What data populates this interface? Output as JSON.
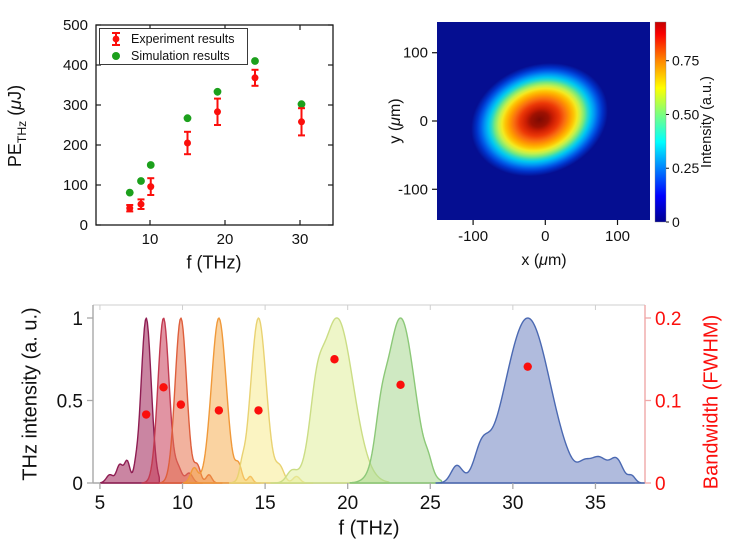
{
  "figure": {
    "background": "#ffffff"
  },
  "labels": {
    "tl_ylabel": {
      "pre": "PE",
      "sub": "THz",
      "mid": " (",
      "mu": "μ",
      "post": "J)"
    },
    "tl_xlabel": "f (THz)",
    "tr_ylabel": {
      "pre": "y (",
      "mu": "μ",
      "post": "m)"
    },
    "tr_xlabel": {
      "pre": "x (",
      "mu": "μ",
      "post": "m)"
    },
    "cb_label": "Intensity (a.u.)",
    "b_ylabel_left": "THz intensity (a. u.)",
    "b_xlabel": "f (THz)",
    "b_ylabel_right": "Bandwidth (FWHM)"
  },
  "chart_data": [
    {
      "id": "pump_energy",
      "type": "scatter",
      "xlabel": "f (THz)",
      "ylabel": "PE_THz (μJ)",
      "xlim": [
        2.8,
        34.4
      ],
      "ylim": [
        0,
        500
      ],
      "xticks": [
        10,
        20,
        30
      ],
      "xtick_labels": [
        "10",
        "20",
        "30"
      ],
      "yticks": [
        0,
        100,
        200,
        300,
        400,
        500
      ],
      "ytick_labels": [
        "0",
        "100",
        "200",
        "300",
        "400",
        "500"
      ],
      "legend": [
        "Experiment results",
        "Simulation results"
      ],
      "series": [
        {
          "name": "Simulation results",
          "color": "#1ca01c",
          "marker": "circle",
          "x": [
            7.3,
            8.8,
            10.1,
            15.0,
            19.0,
            24.0,
            30.2
          ],
          "y": [
            81,
            110,
            150,
            267,
            333,
            410,
            302
          ]
        },
        {
          "name": "Experiment results",
          "color": "#fb0f0c",
          "marker": "errorbar-circle",
          "x": [
            7.3,
            8.8,
            10.1,
            15.0,
            19.0,
            24.0,
            30.2
          ],
          "y": [
            42,
            52,
            96,
            205,
            283,
            368,
            258
          ],
          "yerr": [
            8,
            12,
            21,
            28,
            33,
            20,
            34
          ]
        }
      ]
    },
    {
      "id": "beam_profile",
      "type": "heatmap",
      "xlabel": "x (μm)",
      "ylabel": "y (μm)",
      "xlim": [
        -150,
        145
      ],
      "ylim": [
        -145,
        145
      ],
      "xticks": [
        -100,
        0,
        100
      ],
      "xtick_labels": [
        "-100",
        "0",
        "100"
      ],
      "yticks": [
        100,
        0,
        -100
      ],
      "ytick_labels": [
        "100",
        "0",
        "-100"
      ],
      "background_color": "#050e91",
      "beam": {
        "cx_um": -8,
        "cy_um": 2,
        "rx_um": 97,
        "ry_um": 80,
        "rotation_deg": -20,
        "peak_value": 0.93
      },
      "beam_gradient": [
        [
          0,
          "#7d0a03"
        ],
        [
          0.13,
          "#9e1102"
        ],
        [
          0.2,
          "#cb1d03"
        ],
        [
          0.29,
          "#ec3807"
        ],
        [
          0.37,
          "#f96c10"
        ],
        [
          0.44,
          "#ff9b00"
        ],
        [
          0.5,
          "#fdc404"
        ],
        [
          0.55,
          "#f3ea22"
        ],
        [
          0.6,
          "#c2f04e"
        ],
        [
          0.655,
          "#76e87e"
        ],
        [
          0.7,
          "#2fd9c3"
        ],
        [
          0.745,
          "#00c8f0"
        ],
        [
          0.8,
          "#0096f5"
        ],
        [
          0.86,
          "#005ce8"
        ],
        [
          0.92,
          "#0031c8"
        ],
        [
          1,
          "#050e91"
        ]
      ],
      "colorbar": {
        "label": "Intensity (a.u.)",
        "ticks": [
          0,
          0.25,
          0.5,
          0.75
        ],
        "tick_labels": [
          "0",
          "0.25",
          "0.50",
          "0.75"
        ],
        "max": 0.93,
        "gradient_bottom_to_top": [
          [
            0,
            "#00008f"
          ],
          [
            0.13,
            "#0000fe"
          ],
          [
            0.4,
            "#00fefe"
          ],
          [
            0.54,
            "#7dff7d"
          ],
          [
            0.67,
            "#ffff00"
          ],
          [
            0.81,
            "#ff8400"
          ],
          [
            0.94,
            "#fb0000"
          ],
          [
            1,
            "#c40000"
          ]
        ]
      }
    },
    {
      "id": "thz_spectra",
      "type": "area+scatter",
      "xlabel": "f (THz)",
      "ylabel_left": "THz intensity (a. u.)",
      "ylabel_right": "Bandwidth (FWHM)",
      "right_axis_color": "#fb0f0c",
      "xlim": [
        4.58,
        38.0
      ],
      "ylim_left": [
        0,
        1.078
      ],
      "ylim_right": [
        0,
        0.2156
      ],
      "xticks": [
        5,
        10,
        15,
        20,
        25,
        30,
        35
      ],
      "xtick_labels": [
        "5",
        "10",
        "15",
        "20",
        "25",
        "30",
        "35"
      ],
      "yticks_left": [
        0,
        0.5,
        1
      ],
      "ytick_labels_left": [
        "0",
        "0.5",
        "1"
      ],
      "yticks_right": [
        0,
        0.1,
        0.2
      ],
      "ytick_labels_right": [
        "0",
        "0.1",
        "0.2"
      ],
      "peaks": [
        {
          "center": 7.8,
          "fwhm": 0.72,
          "height": 1,
          "range": [
            5.05,
            8.6
          ],
          "bumps": [
            [
              5.6,
              0.5,
              0.05
            ],
            [
              6.2,
              0.45,
              0.11
            ],
            [
              6.65,
              0.4,
              0.13
            ],
            [
              7.15,
              0.3,
              0.05
            ]
          ],
          "fill": "rgba(158,32,86,0.55)",
          "edge": "#8e1d52"
        },
        {
          "center": 8.85,
          "fwhm": 0.8,
          "height": 1,
          "range": [
            7.55,
            11.2
          ],
          "bumps": [
            [
              9.75,
              0.5,
              0.08
            ],
            [
              10.4,
              0.5,
              0.06
            ]
          ],
          "fill": "rgba(201,60,88,0.55)",
          "edge": "#c23a50"
        },
        {
          "center": 9.9,
          "fwhm": 0.82,
          "height": 1,
          "range": [
            8.65,
            12.4
          ],
          "bumps": [
            [
              10.9,
              0.45,
              0.1
            ],
            [
              11.6,
              0.4,
              0.05
            ]
          ],
          "fill": "rgba(232,114,78,0.55)",
          "edge": "#de5f3c"
        },
        {
          "center": 12.2,
          "fwhm": 1.05,
          "height": 1,
          "range": [
            10.05,
            14.7
          ],
          "bumps": [
            [
              10.7,
              0.5,
              0.09
            ],
            [
              13.4,
              0.45,
              0.1
            ],
            [
              14.1,
              0.35,
              0.04
            ]
          ],
          "fill": "rgba(246,168,68,0.5)",
          "edge": "#f0993a"
        },
        {
          "center": 14.6,
          "fwhm": 1.1,
          "height": 1,
          "range": [
            12.85,
            17.9
          ],
          "bumps": [
            [
              13.6,
              0.35,
              0.06
            ],
            [
              15.9,
              0.6,
              0.09
            ],
            [
              16.9,
              0.5,
              0.04
            ]
          ],
          "fill": "rgba(248,233,133,0.5)",
          "edge": "#e9d272"
        },
        {
          "center": 19.35,
          "fwhm": 2.3,
          "height": 1,
          "range": [
            15.35,
            22.5
          ],
          "bumps": [
            [
              16.6,
              0.7,
              0.06
            ],
            [
              18.1,
              0.9,
              0.25
            ]
          ],
          "fill": "rgba(226,240,163,0.6)",
          "edge": "#cbdd85"
        },
        {
          "center": 23.2,
          "fwhm": 2.0,
          "height": 1,
          "range": [
            20.15,
            25.7
          ],
          "bumps": [
            [
              22.0,
              0.8,
              0.18
            ],
            [
              24.9,
              0.5,
              0.05
            ]
          ],
          "fill": "rgba(168,215,143,0.55)",
          "edge": "#8cc878"
        },
        {
          "center": 30.9,
          "fwhm": 3.2,
          "height": 1,
          "range": [
            25.35,
            37.95
          ],
          "bumps": [
            [
              26.6,
              0.8,
              0.1
            ],
            [
              28.1,
              1.0,
              0.15
            ],
            [
              34.3,
              0.8,
              0.06
            ],
            [
              35.2,
              1.3,
              0.15
            ],
            [
              36.3,
              0.9,
              0.13
            ],
            [
              37.2,
              0.5,
              0.04
            ]
          ],
          "fill": "rgba(123,141,199,0.6)",
          "edge": "#4b69b2"
        }
      ],
      "bandwidth_points": {
        "color": "#fb0f0c",
        "x": [
          7.8,
          8.85,
          9.9,
          12.2,
          14.6,
          19.2,
          23.2,
          30.9
        ],
        "y": [
          0.083,
          0.116,
          0.095,
          0.088,
          0.088,
          0.15,
          0.119,
          0.141
        ]
      }
    }
  ]
}
